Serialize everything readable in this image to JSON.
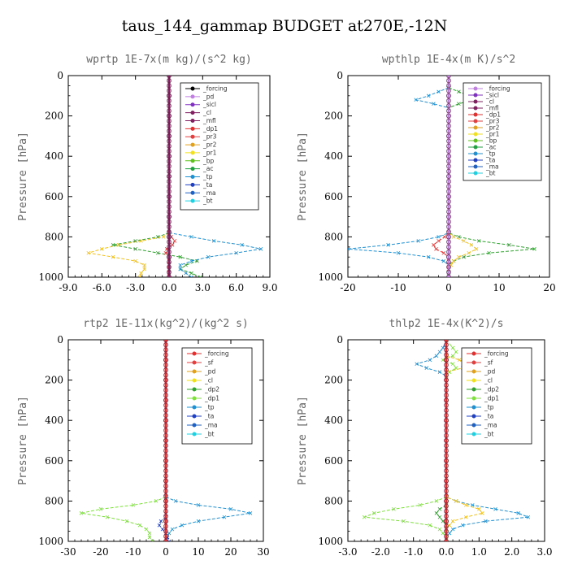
{
  "figure": {
    "title": "taus_144_gammap  BUDGET at270E,-12N"
  },
  "colors": {
    "_forcing_open": "#000000",
    "_pd": "#c080e0",
    "_sicl": "#8030c0",
    "_cl_dark": "#802060",
    "_mfl": "#802060",
    "_dp1": "#e03030",
    "_pr3": "#e04040",
    "_pr2": "#e0a020",
    "_pr1": "#f0e020",
    "_bp": "#60c020",
    "_ac": "#20a040",
    "_tp": "#2090d0",
    "_ta": "#2040c0",
    "_ma": "#2060c0",
    "_bt": "#20d0e0"
  },
  "chart_data": [
    {
      "type": "line",
      "title": "wprtp  1E-7x(m kg)/(s^2 kg)",
      "ylabel": "Pressure [hPa]",
      "xlim": [
        -9.0,
        9.0
      ],
      "xticks": [
        "-9.0",
        "-6.0",
        "-3.0",
        "0.0",
        "3.0",
        "6.0",
        "9.0"
      ],
      "xtick_values": [
        -9,
        -6,
        -3,
        0,
        3,
        6,
        9
      ],
      "ylim": [
        1000,
        0
      ],
      "yticks": [
        0,
        200,
        400,
        600,
        800,
        1000
      ],
      "legend": [
        "_forcing",
        "_pd",
        "_sicl",
        "_cl",
        "_mfl",
        "_dp1",
        "_pr3",
        "_pr2",
        "_pr1",
        "_bp",
        "_ac",
        "_tp",
        "_ta",
        "_ma",
        "_bt"
      ],
      "legend_colors": [
        "#000000",
        "#c080e0",
        "#8030c0",
        "#802060",
        "#802060",
        "#e03030",
        "#e04040",
        "#e0a020",
        "#f0e020",
        "#60c020",
        "#20a040",
        "#2090d0",
        "#2040c0",
        "#2060c0",
        "#20d0e0"
      ],
      "series": [
        {
          "color": "#f0c020",
          "p": [
            780,
            800,
            820,
            840,
            860,
            880,
            900,
            920,
            940,
            960,
            980,
            1000
          ],
          "v": [
            0,
            -0.5,
            -2.5,
            -4.5,
            -6,
            -7.2,
            -5,
            -3,
            -2.2,
            -2.2,
            -2.5,
            -2.6
          ]
        },
        {
          "color": "#30a030",
          "p": [
            780,
            800,
            820,
            840,
            860,
            880,
            900,
            920,
            940,
            960,
            980,
            1000
          ],
          "v": [
            0,
            -1,
            -3,
            -5,
            -3,
            -1,
            1,
            2.5,
            1.5,
            1,
            2,
            2.8
          ]
        },
        {
          "color": "#2090d0",
          "p": [
            780,
            800,
            820,
            840,
            860,
            880,
            900,
            920,
            940,
            960,
            980,
            1000
          ],
          "v": [
            0,
            2,
            4,
            6.5,
            8.2,
            6,
            3.5,
            2,
            1,
            1,
            1.5,
            2
          ]
        },
        {
          "color": "#e03030",
          "p": [
            780,
            800,
            820,
            840,
            860,
            880,
            900,
            920,
            940,
            960,
            980,
            1000
          ],
          "v": [
            0,
            0.2,
            0.5,
            0.3,
            -0.2,
            -0.3,
            0,
            0,
            0,
            0,
            0,
            0
          ]
        },
        {
          "color": "#802060",
          "p": [
            0,
            100,
            200,
            300,
            400,
            500,
            600,
            700,
            800,
            900,
            1000
          ],
          "v": [
            0,
            0,
            0,
            0,
            0,
            0,
            0,
            0,
            0,
            0,
            0
          ],
          "thick": true
        }
      ]
    },
    {
      "type": "line",
      "title": "wpthlp  1E-4x(m K)/s^2",
      "ylabel": "Pressure [hPa]",
      "xlim": [
        -20,
        20
      ],
      "xticks": [
        "-20",
        "-10",
        "0",
        "10",
        "20"
      ],
      "xtick_values": [
        -20,
        -10,
        0,
        10,
        20
      ],
      "ylim": [
        1000,
        0
      ],
      "yticks": [
        0,
        200,
        400,
        600,
        800,
        1000
      ],
      "legend": [
        "_forcing",
        "_sicl",
        "_cl",
        "_mfl",
        "_dp1",
        "_pr3",
        "_pr2",
        "_pr1",
        "_bp",
        "_ac",
        "_tp",
        "_ta",
        "_ma",
        "_bt"
      ],
      "legend_colors": [
        "#c080e0",
        "#8030c0",
        "#802060",
        "#802060",
        "#e03030",
        "#e04040",
        "#e0a020",
        "#f0e020",
        "#60c020",
        "#20a040",
        "#2090d0",
        "#2040c0",
        "#2060c0",
        "#20d0e0"
      ],
      "series": [
        {
          "color": "#2090d0",
          "p": [
            60,
            80,
            100,
            120,
            140,
            160,
            780,
            800,
            820,
            840,
            860,
            880,
            900,
            920,
            940,
            960,
            980,
            1000
          ],
          "v": [
            0,
            -2,
            -4,
            -6.5,
            -3,
            0,
            0,
            -2,
            -6,
            -12,
            -20,
            -10,
            -4,
            -1,
            0,
            0,
            0,
            0
          ]
        },
        {
          "color": "#30a030",
          "p": [
            60,
            80,
            100,
            120,
            140,
            160,
            780,
            800,
            820,
            840,
            860,
            880,
            900,
            920,
            940,
            960,
            980,
            1000
          ],
          "v": [
            0,
            2,
            4,
            5,
            2,
            0,
            0,
            2,
            6,
            12,
            17,
            8,
            3,
            1,
            0,
            0,
            0,
            0
          ]
        },
        {
          "color": "#f0c020",
          "p": [
            780,
            800,
            820,
            840,
            860,
            880,
            900,
            920,
            940,
            960
          ],
          "v": [
            0,
            1,
            3,
            4.5,
            5.5,
            4,
            2,
            1,
            0.5,
            0
          ]
        },
        {
          "color": "#e03030",
          "p": [
            780,
            800,
            820,
            840,
            860,
            880,
            900,
            920,
            940,
            960
          ],
          "v": [
            0,
            -0.8,
            -2,
            -3,
            -2.5,
            -1,
            0,
            0,
            0,
            0
          ]
        },
        {
          "color": "#c080e0",
          "p": [
            0,
            100,
            200,
            300,
            400,
            500,
            600,
            700,
            800,
            900,
            1000
          ],
          "v": [
            0,
            0,
            0,
            0,
            0,
            0,
            0,
            0,
            0,
            0,
            0
          ],
          "thick": true
        }
      ]
    },
    {
      "type": "line",
      "title": "rtp2  1E-11x(kg^2)/(kg^2 s)",
      "ylabel": "Pressure [hPa]",
      "xlim": [
        -30,
        30
      ],
      "xticks": [
        "-30",
        "-20",
        "-10",
        "0",
        "10",
        "20",
        "30"
      ],
      "xtick_values": [
        -30,
        -20,
        -10,
        0,
        10,
        20,
        30
      ],
      "ylim": [
        1000,
        0
      ],
      "yticks": [
        0,
        200,
        400,
        600,
        800,
        1000
      ],
      "legend": [
        "_forcing",
        "_sf",
        "_pd",
        "_cl",
        "_dp2",
        "_dp1",
        "_tp",
        "_ta",
        "_ma",
        "_bt"
      ],
      "legend_colors": [
        "#e03030",
        "#e04040",
        "#e0a020",
        "#f0e020",
        "#30a030",
        "#80e040",
        "#2090d0",
        "#2040c0",
        "#2060c0",
        "#20d0e0"
      ],
      "series": [
        {
          "color": "#80e040",
          "p": [
            780,
            800,
            820,
            840,
            860,
            880,
            900,
            920,
            940,
            960,
            980,
            1000
          ],
          "v": [
            0,
            -3,
            -10,
            -20,
            -26,
            -18,
            -12,
            -8,
            -6,
            -5,
            -5,
            -4
          ]
        },
        {
          "color": "#2090d0",
          "p": [
            780,
            800,
            820,
            840,
            860,
            880,
            900,
            920,
            940,
            960,
            980,
            1000
          ],
          "v": [
            0,
            3,
            10,
            20,
            26,
            18,
            10,
            5,
            2,
            1,
            0.5,
            0
          ]
        },
        {
          "color": "#2040c0",
          "p": [
            880,
            900,
            920,
            940,
            960,
            980,
            1000
          ],
          "v": [
            0,
            -1.5,
            -2,
            -1,
            0,
            0.5,
            1
          ]
        },
        {
          "color": "#e03030",
          "p": [
            0,
            100,
            200,
            300,
            400,
            500,
            600,
            700,
            800,
            900,
            1000
          ],
          "v": [
            0,
            0,
            0,
            0,
            0,
            0,
            0,
            0,
            0,
            0,
            0
          ],
          "thick": true
        }
      ]
    },
    {
      "type": "line",
      "title": "thlp2  1E-4x(K^2)/s",
      "ylabel": "Pressure [hPa]",
      "xlim": [
        -3.0,
        3.0
      ],
      "xticks": [
        "-3.0",
        "-2.0",
        "-1.0",
        "0.0",
        "1.0",
        "2.0",
        "3.0"
      ],
      "xtick_values": [
        -3,
        -2,
        -1,
        0,
        1,
        2,
        3
      ],
      "ylim": [
        1000,
        0
      ],
      "yticks": [
        0,
        200,
        400,
        600,
        800,
        1000
      ],
      "legend": [
        "_forcing",
        "_sf",
        "_pd",
        "_cl",
        "_dp2",
        "_dp1",
        "_tp",
        "_ta",
        "_ma",
        "_bt"
      ],
      "legend_colors": [
        "#e03030",
        "#e04040",
        "#e0a020",
        "#f0e020",
        "#30a030",
        "#80e040",
        "#2090d0",
        "#2040c0",
        "#2060c0",
        "#20d0e0"
      ],
      "series": [
        {
          "color": "#2090d0",
          "p": [
            0,
            40,
            60,
            80,
            100,
            120,
            140,
            160,
            180,
            780,
            800,
            820,
            840,
            860,
            880,
            900,
            920,
            940,
            960,
            980,
            1000
          ],
          "v": [
            0,
            -0.1,
            -0.2,
            -0.3,
            -0.5,
            -0.9,
            -0.6,
            -0.2,
            0,
            0,
            0.3,
            0.8,
            1.5,
            2.2,
            2.5,
            1.2,
            0.5,
            0.2,
            0.1,
            0,
            0
          ]
        },
        {
          "color": "#80e040",
          "p": [
            0,
            40,
            60,
            80,
            100,
            120,
            140,
            160,
            180,
            780,
            800,
            820,
            840,
            860,
            880,
            900,
            920,
            940,
            960,
            980,
            1000
          ],
          "v": [
            0,
            0.2,
            0.3,
            0.2,
            -0.1,
            0.2,
            0.3,
            0.1,
            0,
            0,
            -0.3,
            -0.8,
            -1.6,
            -2.2,
            -2.5,
            -1.3,
            -0.5,
            -0.2,
            -0.1,
            0,
            0
          ]
        },
        {
          "color": "#f0c020",
          "p": [
            80,
            100,
            120,
            140,
            160,
            780,
            800,
            820,
            840,
            860,
            880,
            900,
            920,
            940
          ],
          "v": [
            0,
            0.4,
            0.7,
            0.5,
            0,
            0,
            0.3,
            0.6,
            1.0,
            1.1,
            0.6,
            0.2,
            0.1,
            0
          ]
        },
        {
          "color": "#30a030",
          "p": [
            820,
            840,
            860,
            880,
            900,
            920,
            940
          ],
          "v": [
            0,
            -0.2,
            -0.3,
            -0.2,
            -0.1,
            0,
            0
          ]
        },
        {
          "color": "#e03030",
          "p": [
            0,
            100,
            200,
            300,
            400,
            500,
            600,
            700,
            800,
            900,
            1000
          ],
          "v": [
            0,
            0,
            0,
            0,
            0,
            0,
            0,
            0,
            0,
            0,
            0
          ],
          "thick": true
        }
      ]
    }
  ]
}
